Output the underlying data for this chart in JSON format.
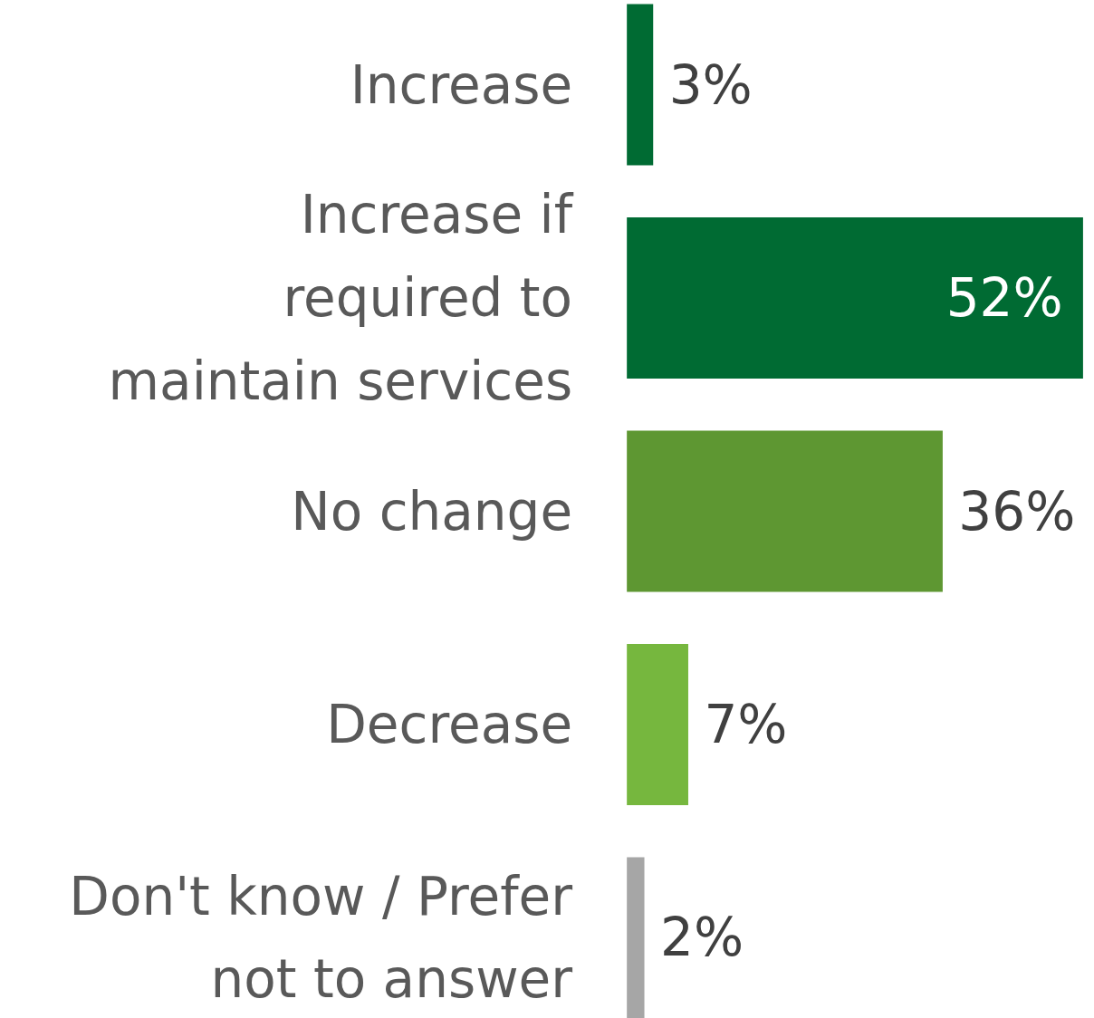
{
  "chart_data": {
    "type": "bar",
    "orientation": "horizontal",
    "categories": [
      "Increase",
      "Increase if required to maintain services",
      "No change",
      "Decrease",
      "Don't know / Prefer not to answer"
    ],
    "values": [
      3,
      52,
      36,
      7,
      2
    ],
    "colors": [
      "#006b33",
      "#006b33",
      "#5e9732",
      "#76b73e",
      "#a6a6a6"
    ],
    "data_labels": true,
    "value_labels": [
      "3%",
      "52%",
      "36%",
      "7%",
      "2%"
    ]
  }
}
